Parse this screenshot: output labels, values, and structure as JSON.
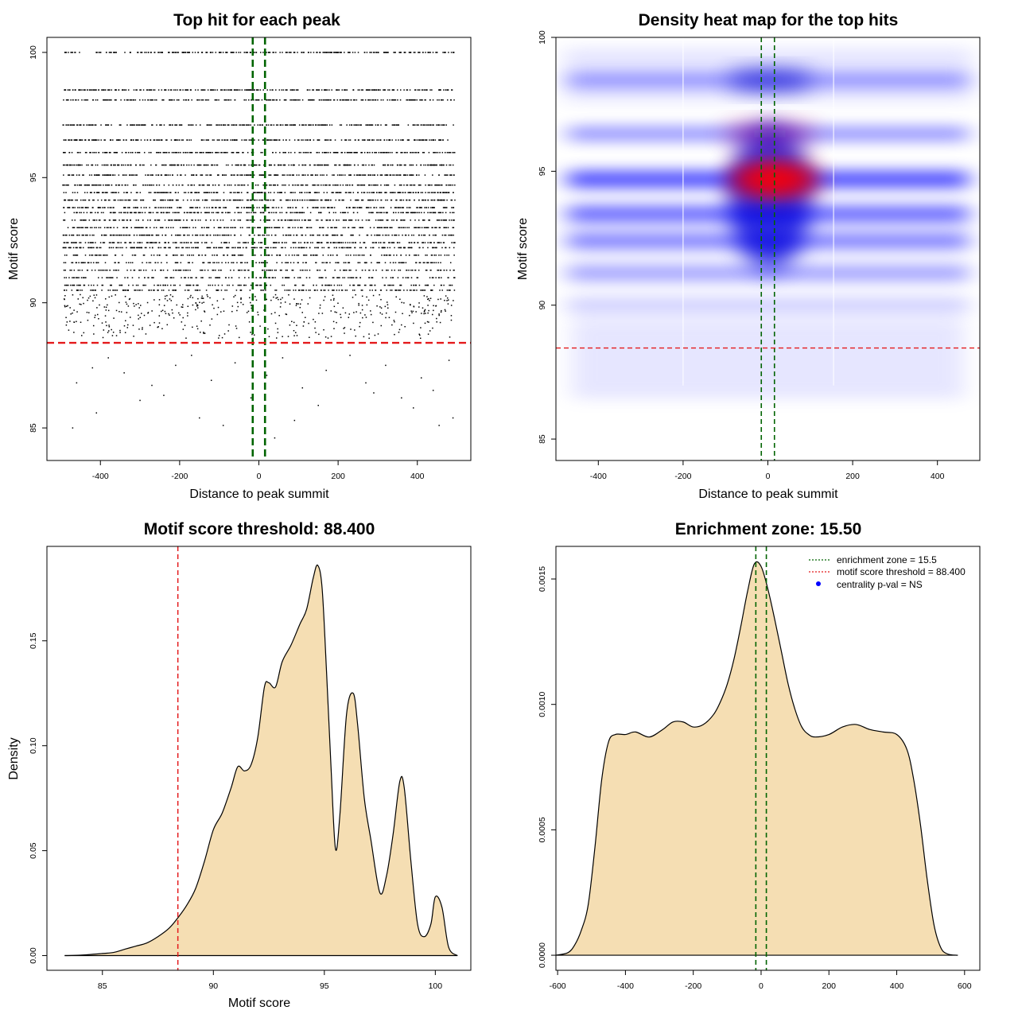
{
  "chart_data": [
    {
      "id": "scatter",
      "type": "scatter",
      "title": "Top hit for each peak",
      "xlabel": "Distance to peak summit",
      "ylabel": "Motif score",
      "xlim": [
        -535,
        535
      ],
      "ylim": [
        83.7,
        100.6
      ],
      "xticks": [
        -400,
        -200,
        0,
        200,
        400
      ],
      "yticks": [
        85,
        90,
        95,
        100
      ],
      "score_levels": [
        100,
        98.5,
        98.1,
        97.1,
        96.5,
        96.0,
        95.5,
        95.1,
        94.7,
        94.4,
        94.1,
        93.8,
        93.6,
        93.3,
        93.0,
        92.7,
        92.4,
        92.2,
        91.9,
        91.6,
        91.3,
        91.0,
        90.7,
        90.5,
        90.2,
        89.9,
        89.6,
        89.3,
        89.0,
        88.7
      ],
      "sparse_points": [
        [
          -470,
          85.0
        ],
        [
          -410,
          85.6
        ],
        [
          -300,
          86.1
        ],
        [
          -240,
          86.3
        ],
        [
          -150,
          85.4
        ],
        [
          -90,
          85.1
        ],
        [
          40,
          84.6
        ],
        [
          90,
          85.3
        ],
        [
          150,
          85.9
        ],
        [
          290,
          86.4
        ],
        [
          390,
          85.8
        ],
        [
          455,
          85.1
        ],
        [
          490,
          85.4
        ],
        [
          -460,
          86.8
        ],
        [
          -420,
          87.4
        ],
        [
          -380,
          87.8
        ],
        [
          -340,
          87.2
        ],
        [
          -270,
          86.7
        ],
        [
          -210,
          87.5
        ],
        [
          -170,
          87.9
        ],
        [
          -120,
          86.9
        ],
        [
          -60,
          87.6
        ],
        [
          -20,
          86.2
        ],
        [
          20,
          87.1
        ],
        [
          60,
          87.8
        ],
        [
          110,
          86.6
        ],
        [
          170,
          87.3
        ],
        [
          230,
          87.9
        ],
        [
          270,
          86.8
        ],
        [
          320,
          87.5
        ],
        [
          360,
          86.2
        ],
        [
          410,
          87.0
        ],
        [
          440,
          86.5
        ],
        [
          480,
          87.7
        ]
      ],
      "hline": 88.4,
      "hline_color": "#e41a1c",
      "vlines": [
        -15.5,
        15.5
      ],
      "vline_color": "#006400"
    },
    {
      "id": "heatmap",
      "type": "heatmap",
      "title": "Density heat map for the top hits",
      "xlabel": "Distance to peak summit",
      "ylabel": "Motif score",
      "xlim": [
        -500,
        500
      ],
      "ylim": [
        84.2,
        100
      ],
      "xticks": [
        -400,
        -200,
        0,
        200,
        400
      ],
      "yticks": [
        85,
        90,
        95,
        100
      ],
      "hline": 88.4,
      "hline_color": "#e41a1c",
      "vlines": [
        -15.5,
        15.5
      ],
      "vline_color": "#006400",
      "white_lines": [
        -200,
        155
      ],
      "hotspot": {
        "x": 15,
        "y": 94.7,
        "color": "#ff0000"
      },
      "bands": [
        {
          "y": 98.4,
          "intensity": 0.55
        },
        {
          "y": 96.4,
          "intensity": 0.65
        },
        {
          "y": 94.7,
          "intensity": 1.0
        },
        {
          "y": 93.4,
          "intensity": 0.85
        },
        {
          "y": 92.4,
          "intensity": 0.7
        },
        {
          "y": 91.2,
          "intensity": 0.5
        },
        {
          "y": 90.0,
          "intensity": 0.25
        }
      ]
    },
    {
      "id": "scoredens",
      "type": "area",
      "title": "Motif score threshold: 88.400",
      "xlabel": "Motif score",
      "ylabel": "Density",
      "xlim": [
        82.5,
        101.6
      ],
      "ylim": [
        -0.007,
        0.195
      ],
      "xticks": [
        85,
        90,
        95,
        100
      ],
      "yticks": [
        0.0,
        0.05,
        0.1,
        0.15
      ],
      "ytick_labels": [
        "0.00",
        "0.05",
        "0.10",
        "0.15"
      ],
      "fill_color": "#f5deb3",
      "vline": 88.4,
      "vline_color": "#e41a1c",
      "x": [
        83.3,
        84,
        85,
        85.5,
        86,
        86.5,
        87,
        87.5,
        88,
        88.4,
        88.8,
        89.2,
        89.6,
        90,
        90.4,
        90.8,
        91.1,
        91.4,
        91.7,
        92,
        92.3,
        92.5,
        92.8,
        93.1,
        93.5,
        93.9,
        94.2,
        94.5,
        94.7,
        94.9,
        95.1,
        95.3,
        95.5,
        95.7,
        96,
        96.3,
        96.5,
        96.8,
        97.1,
        97.5,
        97.8,
        98.1,
        98.4,
        98.6,
        98.9,
        99.2,
        99.5,
        99.8,
        100.0,
        100.3,
        100.6,
        101.0
      ],
      "y": [
        0.0,
        0.0002,
        0.001,
        0.0015,
        0.003,
        0.0045,
        0.006,
        0.009,
        0.013,
        0.018,
        0.024,
        0.032,
        0.045,
        0.06,
        0.068,
        0.08,
        0.09,
        0.088,
        0.091,
        0.104,
        0.128,
        0.13,
        0.128,
        0.14,
        0.148,
        0.158,
        0.165,
        0.18,
        0.186,
        0.175,
        0.135,
        0.09,
        0.051,
        0.067,
        0.115,
        0.125,
        0.11,
        0.075,
        0.055,
        0.03,
        0.038,
        0.058,
        0.083,
        0.08,
        0.045,
        0.015,
        0.009,
        0.015,
        0.028,
        0.023,
        0.004,
        0.0
      ]
    },
    {
      "id": "distdens",
      "type": "area",
      "title": "Enrichment zone: 15.50",
      "xlabel": "Distance to peak summit",
      "ylabel": "Density",
      "xlim": [
        -605,
        645
      ],
      "ylim": [
        -6e-05,
        0.00163
      ],
      "xticks": [
        -600,
        -400,
        -200,
        0,
        200,
        400,
        600
      ],
      "yticks": [
        0.0,
        0.0005,
        0.001,
        0.0015
      ],
      "ytick_labels": [
        "0.0000",
        "0.0005",
        "0.0010",
        "0.0015"
      ],
      "fill_color": "#f5deb3",
      "vlines": [
        -15.5,
        15.5
      ],
      "vline_color": "#006400",
      "legend": [
        {
          "label": "enrichment zone = 15.5",
          "color": "#006400",
          "kind": "line"
        },
        {
          "label": "motif score threshold = 88.400",
          "color": "#e41a1c",
          "kind": "line"
        },
        {
          "label": "centrality p-val = NS",
          "color": "#0000ff",
          "kind": "point"
        }
      ],
      "x": [
        -605,
        -570,
        -550,
        -530,
        -510,
        -490,
        -470,
        -450,
        -430,
        -400,
        -370,
        -330,
        -290,
        -260,
        -230,
        -200,
        -170,
        -140,
        -120,
        -100,
        -80,
        -60,
        -40,
        -20,
        0,
        20,
        40,
        60,
        80,
        100,
        120,
        140,
        160,
        200,
        240,
        280,
        320,
        360,
        400,
        430,
        450,
        470,
        490,
        510,
        530,
        550,
        580
      ],
      "y": [
        0.0,
        1e-05,
        4e-05,
        0.0001,
        0.0002,
        0.00043,
        0.0007,
        0.00085,
        0.00088,
        0.00088,
        0.00089,
        0.00087,
        0.0009,
        0.00093,
        0.00093,
        0.00091,
        0.00092,
        0.00096,
        0.00101,
        0.00108,
        0.00118,
        0.00131,
        0.00145,
        0.00156,
        0.00155,
        0.00146,
        0.00134,
        0.00121,
        0.00108,
        0.00098,
        0.00091,
        0.00088,
        0.00087,
        0.00088,
        0.00091,
        0.00092,
        0.0009,
        0.00089,
        0.00088,
        0.00082,
        0.0007,
        0.00052,
        0.0003,
        0.00012,
        3e-05,
        5e-06,
        0.0
      ]
    }
  ]
}
